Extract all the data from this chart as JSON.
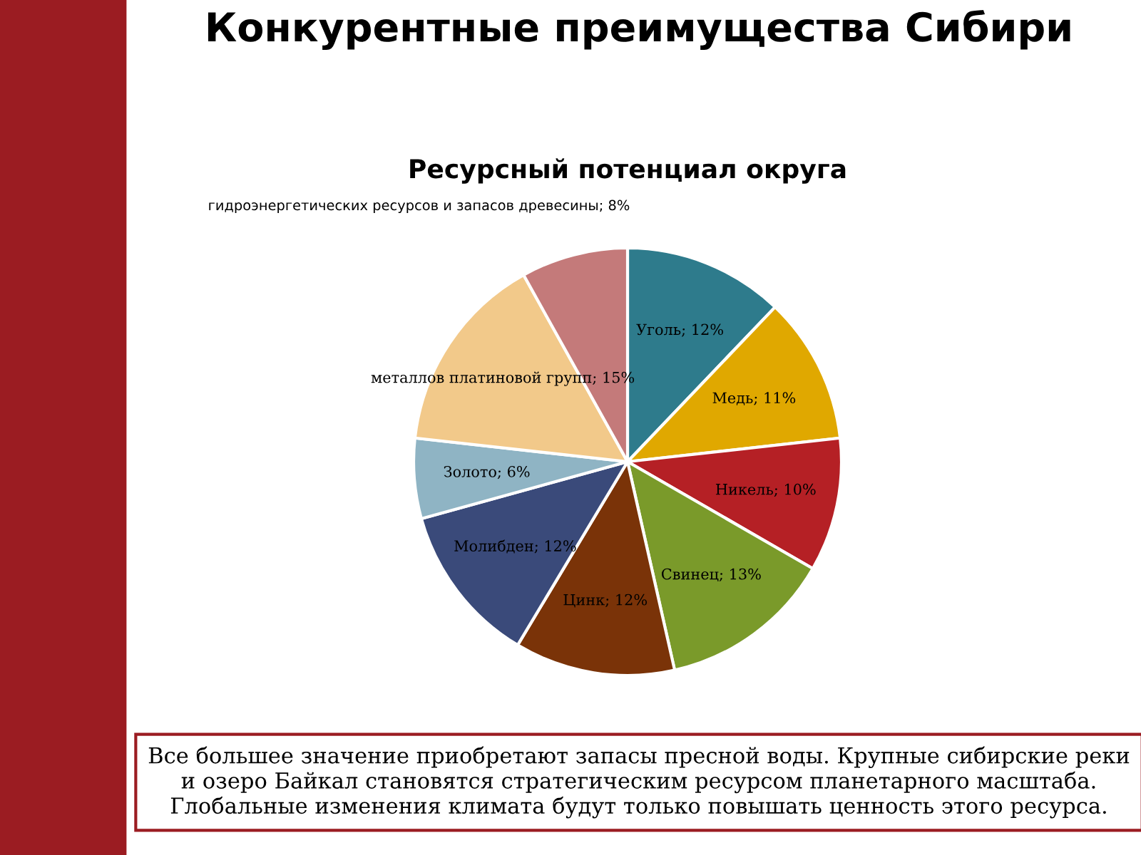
{
  "chart_data": {
    "type": "pie",
    "title": "Конкурентные преимущества Сибири",
    "subtitle": "Ресурсный потенциал округа",
    "categories": [
      "Уголь",
      "Медь",
      "Никель",
      "Свинец",
      "Цинк",
      "Молибден",
      "Золото",
      "металлов платиновой групп",
      "гидроэнергетических ресурсов и запасов древесины"
    ],
    "values": [
      12,
      11,
      10,
      13,
      12,
      12,
      6,
      15,
      8
    ],
    "colors": [
      "#2e7b8c",
      "#e0a800",
      "#b52025",
      "#7a9a2a",
      "#7a3308",
      "#3a4a7a",
      "#8fb4c4",
      "#f2c98a",
      "#c47a7a"
    ],
    "value_labels": [
      "12%",
      "11%",
      "10%",
      "13%",
      "12%",
      "12%",
      "6%",
      "15%",
      "8%"
    ],
    "annotations": [
      "Все большее значение приобретают запасы пресной воды. Крупные сибирские реки и озеро Байкал становятся стратегическим ресурсом планетарного масштаба. Глобальные изменения климата будут только повышать ценность этого ресурса."
    ]
  }
}
